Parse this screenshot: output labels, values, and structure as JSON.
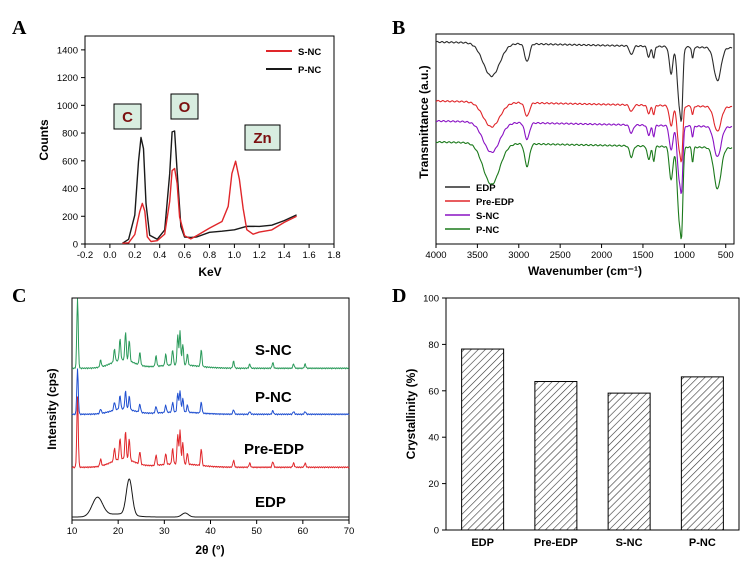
{
  "colors": {
    "sample_red": "#e0262a",
    "sample_black": "#1a1a1a",
    "ftir_edp": "#2b2b2b",
    "ftir_pre": "#e0262a",
    "ftir_snc": "#8a12c4",
    "ftir_pnc": "#1c7a1c",
    "xrd_snc": "#2a9a5a",
    "xrd_pnc": "#1f4fd0",
    "xrd_pre": "#e0262a",
    "xrd_edp": "#1a1a1a",
    "peak_box_fill": "#d8ede0"
  },
  "panels": {
    "A": "A",
    "B": "B",
    "C": "C",
    "D": "D"
  },
  "chart_data": [
    {
      "type": "line",
      "xlabel": "KeV",
      "ylabel": "Counts",
      "xlim": [
        -0.2,
        1.8
      ],
      "ylim": [
        0,
        1500
      ],
      "xticks": [
        "-0.2",
        "0.0",
        "0.2",
        "0.4",
        "0.6",
        "0.8",
        "1.0",
        "1.2",
        "1.4",
        "1.6",
        "1.8"
      ],
      "yticks": [
        "0",
        "200",
        "400",
        "600",
        "800",
        "1000",
        "1200",
        "1400"
      ],
      "legend_position": "top-right",
      "annotations": [
        "C",
        "O",
        "Zn"
      ],
      "series": [
        {
          "name": "S-NC",
          "x": [
            0.1,
            0.15,
            0.2,
            0.24,
            0.26,
            0.28,
            0.3,
            0.33,
            0.38,
            0.44,
            0.48,
            0.5,
            0.52,
            0.54,
            0.56,
            0.6,
            0.65,
            0.7,
            0.8,
            0.9,
            0.95,
            0.98,
            1.01,
            1.04,
            1.07,
            1.1,
            1.15,
            1.2,
            1.3,
            1.4,
            1.5
          ],
          "y": [
            5,
            15,
            60,
            240,
            295,
            230,
            60,
            15,
            20,
            80,
            300,
            530,
            550,
            430,
            200,
            60,
            30,
            70,
            110,
            160,
            280,
            500,
            600,
            470,
            250,
            110,
            70,
            80,
            110,
            150,
            200
          ]
        },
        {
          "name": "P-NC",
          "x": [
            0.1,
            0.15,
            0.2,
            0.23,
            0.25,
            0.27,
            0.29,
            0.32,
            0.38,
            0.44,
            0.48,
            0.5,
            0.52,
            0.54,
            0.57,
            0.6,
            0.65,
            0.7,
            0.8,
            0.9,
            1.0,
            1.1,
            1.2,
            1.3,
            1.4,
            1.5
          ],
          "y": [
            5,
            40,
            200,
            600,
            770,
            680,
            300,
            60,
            30,
            110,
            500,
            810,
            820,
            520,
            130,
            50,
            40,
            60,
            80,
            90,
            110,
            120,
            130,
            140,
            160,
            210
          ]
        }
      ]
    },
    {
      "type": "line",
      "xlabel": "Wavenumber (cm⁻¹)",
      "ylabel": "Transmittance (a.u.)",
      "xlim": [
        4000,
        400
      ],
      "xticks": [
        "4000",
        "3500",
        "3000",
        "2500",
        "2000",
        "1500",
        "1000",
        "500"
      ],
      "legend_position": "bottom-left",
      "series": [
        {
          "name": "EDP",
          "offset": 3.0
        },
        {
          "name": "Pre-EDP",
          "offset": 2.0
        },
        {
          "name": "S-NC",
          "offset": 1.45
        },
        {
          "name": "P-NC",
          "offset": 0.8
        }
      ]
    },
    {
      "type": "line",
      "xlabel": "2θ (°)",
      "ylabel": "Intensity (cps)",
      "xlim": [
        10,
        70
      ],
      "xticks": [
        "10",
        "20",
        "30",
        "40",
        "50",
        "60",
        "70"
      ],
      "series": [
        {
          "name": "S-NC",
          "offset": 3
        },
        {
          "name": "P-NC",
          "offset": 2
        },
        {
          "name": "Pre-EDP",
          "offset": 1
        },
        {
          "name": "EDP",
          "offset": 0
        }
      ]
    },
    {
      "type": "bar",
      "categories": [
        "EDP",
        "Pre-EDP",
        "S-NC",
        "P-NC"
      ],
      "values": [
        78,
        64,
        59,
        66
      ],
      "ylabel": "Crystallinity (%)",
      "ylim": [
        0,
        100
      ],
      "yticks": [
        "0",
        "20",
        "40",
        "60",
        "80",
        "100"
      ]
    }
  ]
}
